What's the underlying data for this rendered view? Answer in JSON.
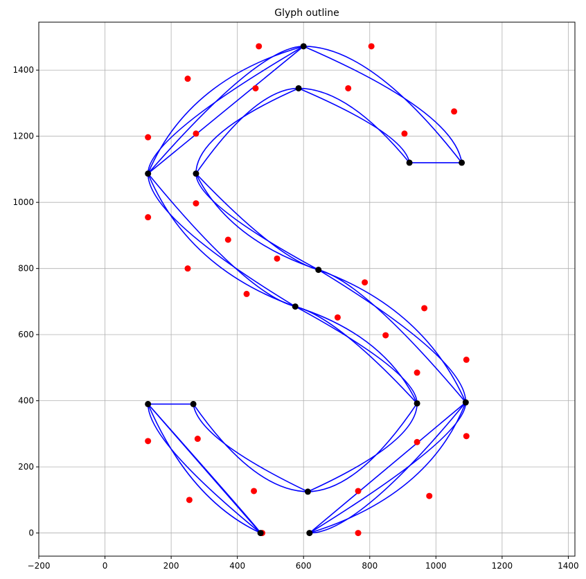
{
  "chart_data": {
    "type": "scatter",
    "title": "Glyph outline",
    "xlabel": "",
    "ylabel": "",
    "xlim": [
      -200,
      1420
    ],
    "ylim": [
      -70,
      1545
    ],
    "xticks": [
      -200,
      0,
      200,
      400,
      600,
      800,
      1000,
      1200,
      1400
    ],
    "yticks": [
      0,
      200,
      400,
      600,
      800,
      1000,
      1200,
      1400
    ],
    "grid": true,
    "colors": {
      "curve": "#0000ff",
      "control_points": "#ff0000",
      "on_curve_points": "#000000",
      "grid": "#b0b0b0"
    },
    "on_curve_points": [
      [
        600,
        1472
      ],
      [
        585,
        1345
      ],
      [
        130,
        1087
      ],
      [
        275,
        1087
      ],
      [
        920,
        1120
      ],
      [
        1078,
        1120
      ],
      [
        645,
        796
      ],
      [
        575,
        685
      ],
      [
        943,
        392
      ],
      [
        1090,
        395
      ],
      [
        130,
        390
      ],
      [
        267,
        390
      ],
      [
        613,
        125
      ],
      [
        470,
        0
      ],
      [
        618,
        0
      ]
    ],
    "control_points": [
      [
        465,
        1472
      ],
      [
        805,
        1472
      ],
      [
        250,
        1374
      ],
      [
        455,
        1345
      ],
      [
        735,
        1345
      ],
      [
        130,
        1197
      ],
      [
        275,
        1208
      ],
      [
        905,
        1208
      ],
      [
        1055,
        1275
      ],
      [
        130,
        955
      ],
      [
        275,
        997
      ],
      [
        372,
        887
      ],
      [
        520,
        830
      ],
      [
        250,
        800
      ],
      [
        785,
        758
      ],
      [
        965,
        680
      ],
      [
        428,
        723
      ],
      [
        703,
        652
      ],
      [
        848,
        598
      ],
      [
        1092,
        524
      ],
      [
        943,
        485
      ],
      [
        130,
        278
      ],
      [
        280,
        285
      ],
      [
        943,
        275
      ],
      [
        1092,
        293
      ],
      [
        255,
        100
      ],
      [
        450,
        127
      ],
      [
        765,
        127
      ],
      [
        980,
        112
      ],
      [
        475,
        0
      ],
      [
        765,
        0
      ]
    ],
    "segments": [
      {
        "type": "quad",
        "points": [
          [
            600,
            1472
          ],
          [
            805,
            1472
          ],
          [
            1078,
            1120
          ]
        ]
      },
      {
        "type": "quad",
        "points": [
          [
            600,
            1472
          ],
          [
            1055,
            1275
          ],
          [
            1078,
            1120
          ]
        ]
      },
      {
        "type": "line",
        "points": [
          [
            1078,
            1120
          ],
          [
            920,
            1120
          ]
        ]
      },
      {
        "type": "quad",
        "points": [
          [
            920,
            1120
          ],
          [
            735,
            1345
          ],
          [
            585,
            1345
          ]
        ]
      },
      {
        "type": "quad",
        "points": [
          [
            920,
            1120
          ],
          [
            905,
            1208
          ],
          [
            585,
            1345
          ]
        ]
      },
      {
        "type": "quad",
        "points": [
          [
            585,
            1345
          ],
          [
            455,
            1345
          ],
          [
            275,
            1087
          ]
        ]
      },
      {
        "type": "quad",
        "points": [
          [
            585,
            1345
          ],
          [
            275,
            1208
          ],
          [
            275,
            1087
          ]
        ]
      },
      {
        "type": "quad",
        "points": [
          [
            275,
            1087
          ],
          [
            275,
            997
          ],
          [
            645,
            796
          ]
        ]
      },
      {
        "type": "quad",
        "points": [
          [
            275,
            1087
          ],
          [
            372,
            887
          ],
          [
            645,
            796
          ]
        ]
      },
      {
        "type": "quad",
        "points": [
          [
            275,
            1087
          ],
          [
            520,
            830
          ],
          [
            645,
            796
          ]
        ]
      },
      {
        "type": "quad",
        "points": [
          [
            645,
            796
          ],
          [
            785,
            758
          ],
          [
            1090,
            395
          ]
        ]
      },
      {
        "type": "quad",
        "points": [
          [
            645,
            796
          ],
          [
            965,
            680
          ],
          [
            1090,
            395
          ]
        ]
      },
      {
        "type": "quad",
        "points": [
          [
            645,
            796
          ],
          [
            1092,
            524
          ],
          [
            1090,
            395
          ]
        ]
      },
      {
        "type": "quad",
        "points": [
          [
            1090,
            395
          ],
          [
            1092,
            293
          ],
          [
            618,
            0
          ]
        ]
      },
      {
        "type": "quad",
        "points": [
          [
            1090,
            395
          ],
          [
            980,
            112
          ],
          [
            618,
            0
          ]
        ]
      },
      {
        "type": "quad",
        "points": [
          [
            1090,
            395
          ],
          [
            765,
            0
          ],
          [
            618,
            0
          ]
        ]
      },
      {
        "type": "line",
        "points": [
          [
            618,
            0
          ],
          [
            1090,
            395
          ]
        ]
      },
      {
        "type": "quad",
        "points": [
          [
            943,
            392
          ],
          [
            943,
            275
          ],
          [
            613,
            125
          ]
        ]
      },
      {
        "type": "quad",
        "points": [
          [
            943,
            392
          ],
          [
            765,
            127
          ],
          [
            613,
            125
          ]
        ]
      },
      {
        "type": "quad",
        "points": [
          [
            613,
            125
          ],
          [
            450,
            127
          ],
          [
            267,
            390
          ]
        ]
      },
      {
        "type": "quad",
        "points": [
          [
            613,
            125
          ],
          [
            280,
            285
          ],
          [
            267,
            390
          ]
        ]
      },
      {
        "type": "line",
        "points": [
          [
            267,
            390
          ],
          [
            130,
            390
          ]
        ]
      },
      {
        "type": "quad",
        "points": [
          [
            130,
            390
          ],
          [
            130,
            278
          ],
          [
            470,
            0
          ]
        ]
      },
      {
        "type": "quad",
        "points": [
          [
            130,
            390
          ],
          [
            255,
            100
          ],
          [
            470,
            0
          ]
        ]
      },
      {
        "type": "line",
        "points": [
          [
            130,
            390
          ],
          [
            470,
            0
          ]
        ]
      },
      {
        "type": "quad",
        "points": [
          [
            130,
            390
          ],
          [
            475,
            0
          ],
          [
            470,
            0
          ]
        ]
      },
      {
        "type": "quad",
        "points": [
          [
            943,
            392
          ],
          [
            943,
            485
          ],
          [
            575,
            685
          ]
        ]
      },
      {
        "type": "quad",
        "points": [
          [
            943,
            392
          ],
          [
            848,
            598
          ],
          [
            575,
            685
          ]
        ]
      },
      {
        "type": "quad",
        "points": [
          [
            943,
            392
          ],
          [
            703,
            652
          ],
          [
            575,
            685
          ]
        ]
      },
      {
        "type": "quad",
        "points": [
          [
            575,
            685
          ],
          [
            428,
            723
          ],
          [
            130,
            1087
          ]
        ]
      },
      {
        "type": "quad",
        "points": [
          [
            575,
            685
          ],
          [
            250,
            800
          ],
          [
            130,
            1087
          ]
        ]
      },
      {
        "type": "quad",
        "points": [
          [
            575,
            685
          ],
          [
            130,
            955
          ],
          [
            130,
            1087
          ]
        ]
      },
      {
        "type": "quad",
        "points": [
          [
            130,
            1087
          ],
          [
            130,
            1197
          ],
          [
            600,
            1472
          ]
        ]
      },
      {
        "type": "quad",
        "points": [
          [
            130,
            1087
          ],
          [
            250,
            1374
          ],
          [
            600,
            1472
          ]
        ]
      },
      {
        "type": "quad",
        "points": [
          [
            130,
            1087
          ],
          [
            465,
            1472
          ],
          [
            600,
            1472
          ]
        ]
      },
      {
        "type": "line",
        "points": [
          [
            130,
            1087
          ],
          [
            600,
            1472
          ]
        ]
      }
    ]
  }
}
